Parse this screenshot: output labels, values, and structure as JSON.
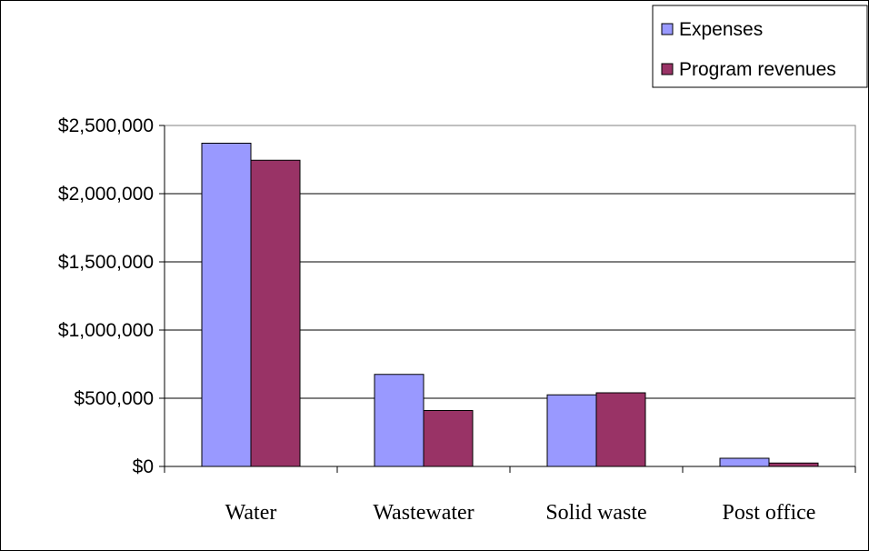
{
  "chart_data": {
    "type": "bar",
    "categories": [
      "Water",
      "Wastewater",
      "Solid waste",
      "Post office"
    ],
    "series": [
      {
        "name": "Expenses",
        "values": [
          2370000,
          675000,
          525000,
          60000
        ],
        "color": "#9999ff"
      },
      {
        "name": "Program revenues",
        "values": [
          2245000,
          410000,
          540000,
          25000
        ],
        "color": "#993366"
      }
    ],
    "ylim": [
      0,
      2500000
    ],
    "yticks": [
      "$0",
      "$500,000",
      "$1,000,000",
      "$1,500,000",
      "$2,000,000",
      "$2,500,000"
    ],
    "ytick_values": [
      0,
      500000,
      1000000,
      1500000,
      2000000,
      2500000
    ],
    "grid": true,
    "legend_position": "top-right",
    "plot_background": "#ffffff",
    "title": "",
    "xlabel": "",
    "ylabel": ""
  }
}
